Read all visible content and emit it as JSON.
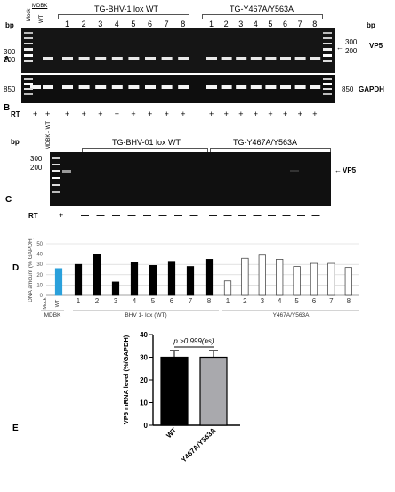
{
  "panel_labels": {
    "a": "A",
    "b": "B",
    "c": "C",
    "d": "D",
    "e": "E"
  },
  "bp_label": "bp",
  "gel_ab": {
    "header_mdbk": "MDBK",
    "mock": "Mock",
    "wt": "WT",
    "group1_title": "TG-BHV-1 lox WT",
    "group2_title": "TG-Y467A/Y563A",
    "lane_numbers": [
      "1",
      "2",
      "3",
      "4",
      "5",
      "6",
      "7",
      "8"
    ],
    "ladder_left_a": [
      "300",
      "200"
    ],
    "ladder_right_a": [
      "300",
      "200"
    ],
    "ladder_left_b": "850",
    "ladder_right_b": "850",
    "vp5_label": "VP5",
    "gapdh_label": "GAPDH",
    "rt_label": "RT",
    "rt_marks": [
      "+",
      "+",
      "+",
      "+",
      "+",
      "+",
      "+",
      "+",
      "+",
      "+",
      "+",
      "+",
      "+",
      "+",
      "+",
      "+",
      "+",
      "+"
    ]
  },
  "gel_c": {
    "mdbk_wt": "MDBK - WT",
    "group1_title": "TG-BHV-01 lox WT",
    "group2_title": "TG-Y467A/Y563A",
    "lane_numbers": [
      "1",
      "2",
      "3",
      "4",
      "5",
      "6",
      "7",
      "8"
    ],
    "ladder_left": [
      "300",
      "200"
    ],
    "vp5_label": "VP5",
    "rt_label": "RT",
    "rt_plus": "+",
    "rt_minus": "—"
  },
  "chart_data": [
    {
      "type": "bar",
      "ylabel": "DNA amount (% GAPDH)",
      "ylim": [
        0,
        50
      ],
      "yticks": [
        0,
        10,
        20,
        30,
        40,
        50
      ],
      "categories": [
        "Mock",
        "WT",
        "1",
        "2",
        "3",
        "4",
        "5",
        "6",
        "7",
        "8",
        "1",
        "2",
        "3",
        "4",
        "5",
        "6",
        "7",
        "8"
      ],
      "values": [
        0,
        26,
        30,
        40,
        13,
        32,
        29,
        33,
        28,
        35,
        14,
        36,
        39,
        35,
        28,
        31,
        31,
        27
      ],
      "group_labels": [
        "MDBK",
        "BHV 1- lox (WT)",
        "Y467A/Y563A"
      ],
      "colors": {
        "wt": "#2aa0db",
        "bhv_wt": "#000000",
        "mutant": "#ffffff"
      }
    },
    {
      "type": "bar",
      "ylabel": "VP5 mRNA level (%/GAPDH)",
      "ylim": [
        0,
        40
      ],
      "yticks": [
        0,
        10,
        20,
        30,
        40
      ],
      "categories": [
        "WT",
        "Y467A/Y563A"
      ],
      "values": [
        30,
        30
      ],
      "errors": [
        3,
        3
      ],
      "annotation": "p >0.999(ns)",
      "colors": [
        "#000000",
        "#a9a9ad"
      ]
    }
  ]
}
